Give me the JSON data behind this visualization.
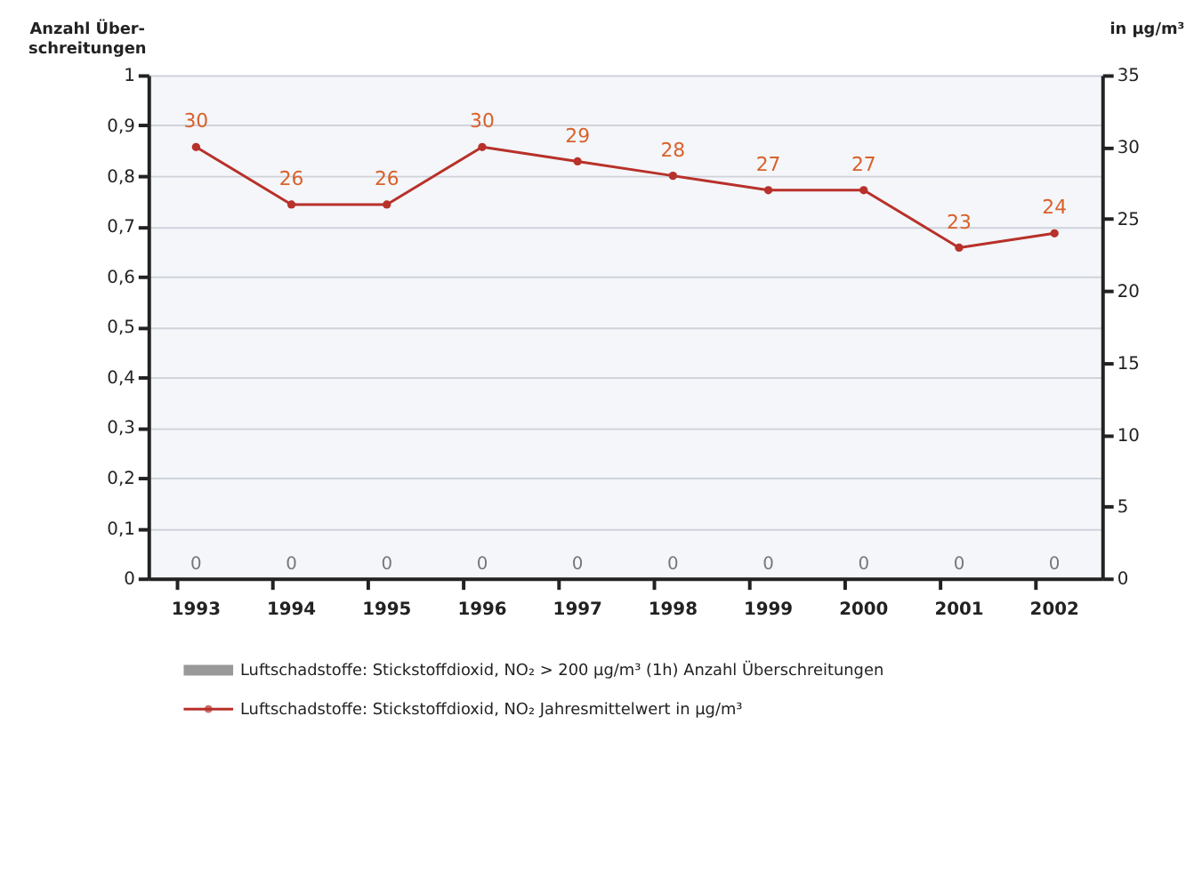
{
  "chart_data": {
    "type": "bar",
    "categories": [
      "1993",
      "1994",
      "1995",
      "1996",
      "1997",
      "1998",
      "1999",
      "2000",
      "2001",
      "2002"
    ],
    "series": [
      {
        "name": "Luftschadstoffe:  Stickstoffdioxid, NO₂ > 200 µg/m³  (1h) Anzahl Überschreitungen",
        "color": "#999999",
        "values": [
          0,
          0,
          0,
          0,
          0,
          0,
          0,
          0,
          0,
          0
        ]
      },
      {
        "name": "Luftschadstoffe:  Stickstoffdioxid, NO₂ Jahresmittelwert in µg/m³",
        "type": "line",
        "axis": "y2",
        "color": "#b8312a",
        "values": [
          30,
          26,
          26,
          30,
          29,
          28,
          27,
          27,
          23,
          24
        ]
      }
    ],
    "ylabel": "Anzahl Über- schreitungen",
    "y2label": "in µg/m³",
    "ylim": [
      0,
      1
    ],
    "yticks": [
      0,
      {
        "value": 0.1,
        "label": "0,1"
      },
      {
        "value": 0.2,
        "label": "0,2"
      },
      {
        "value": 0.3,
        "label": "0,3"
      },
      {
        "value": 0.4,
        "label": "0,4"
      },
      {
        "value": 0.5,
        "label": "0,5"
      },
      {
        "value": 0.6,
        "label": "0,6"
      },
      {
        "value": 0.7,
        "label": "0,7"
      },
      {
        "value": 0.8,
        "label": "0,8"
      },
      {
        "value": 0.9,
        "label": "0,9"
      },
      1
    ],
    "y2lim": [
      0,
      35
    ],
    "y2ticks": [
      0,
      5,
      10,
      15,
      20,
      25,
      30,
      35
    ],
    "grid": "y",
    "legend": "bottom",
    "data_labels": true,
    "marker": "circle"
  }
}
